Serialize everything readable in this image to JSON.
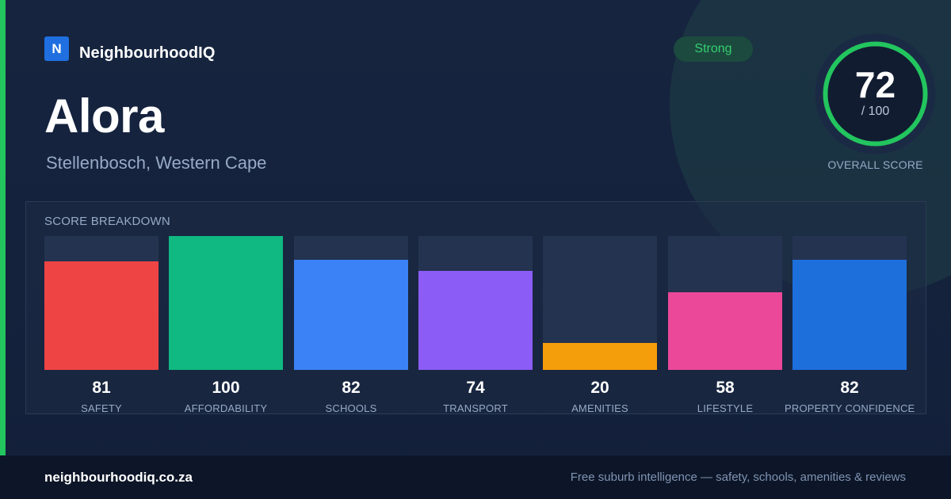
{
  "brand": {
    "logo_letter": "N",
    "name": "NeighbourhoodIQ"
  },
  "suburb": {
    "name": "Alora",
    "location": "Stellenbosch, Western Cape"
  },
  "badge": {
    "label": "Strong",
    "color": "#34d06e"
  },
  "overall": {
    "score": "72",
    "max_label": "/ 100",
    "label": "OVERALL SCORE",
    "fraction": 0.72,
    "ring_color": "#22c55e"
  },
  "chart_data": {
    "type": "bar",
    "title": "SCORE BREAKDOWN",
    "categories": [
      "SAFETY",
      "AFFORDABILITY",
      "SCHOOLS",
      "TRANSPORT",
      "AMENITIES",
      "LIFESTYLE",
      "PROPERTY CONFIDENCE"
    ],
    "values": [
      81,
      100,
      82,
      74,
      20,
      58,
      82
    ],
    "colors": [
      "#ef4444",
      "#10b981",
      "#3b82f6",
      "#8b5cf6",
      "#f59e0b",
      "#ec4899",
      "#1d6fdc"
    ],
    "ylim": [
      0,
      100
    ],
    "grid": false,
    "legend": "none"
  },
  "footer": {
    "domain": "neighbourhoodiq.co.za",
    "tagline": "Free suburb intelligence — safety, schools, amenities & reviews"
  }
}
